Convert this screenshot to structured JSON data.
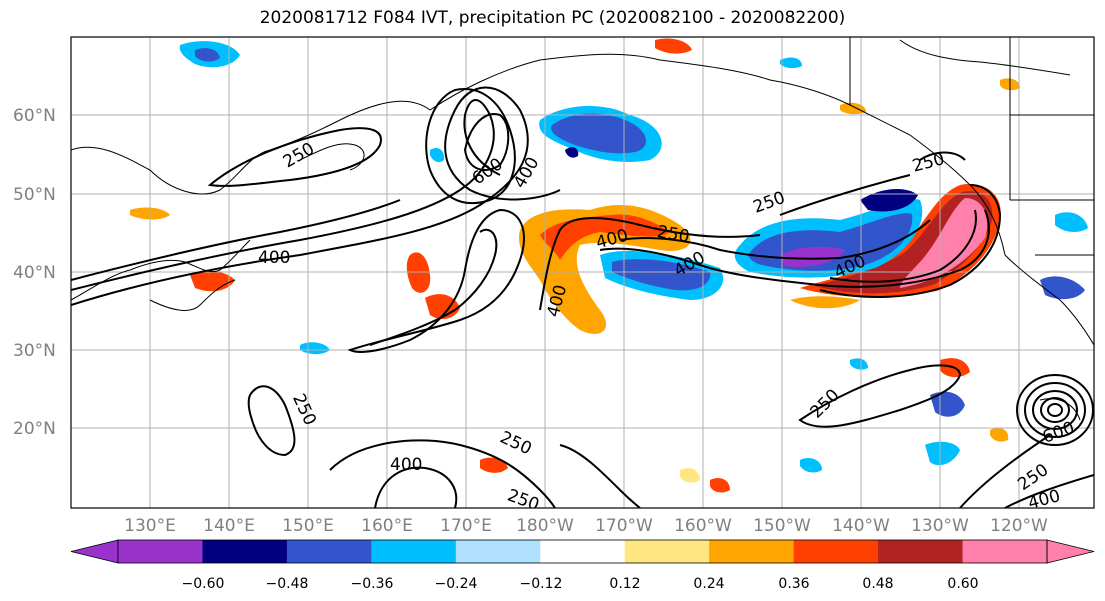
{
  "title": "2020081712 F084 IVT, precipitation PC (2020082100 - 2020082200)",
  "axes": {
    "lat_labels": [
      "60°N",
      "50°N",
      "40°N",
      "30°N",
      "20°N"
    ],
    "lon_labels": [
      "130°E",
      "140°E",
      "150°E",
      "160°E",
      "170°E",
      "180°W",
      "170°W",
      "160°W",
      "150°W",
      "140°W",
      "130°W",
      "120°W"
    ]
  },
  "contour_labels": [
    "250",
    "600",
    "400",
    "400",
    "400",
    "250",
    "400",
    "250",
    "400",
    "250",
    "400",
    "250",
    "250",
    "250",
    "400",
    "250",
    "600",
    "250",
    "400"
  ],
  "colorbar": {
    "ticks": [
      "−0.60",
      "−0.48",
      "−0.36",
      "−0.24",
      "−0.12",
      "0.12",
      "0.24",
      "0.36",
      "0.48",
      "0.60"
    ],
    "colors": [
      "#9933cc",
      "#000080",
      "#3355cc",
      "#00bfff",
      "#b0e0ff",
      "#ffffff",
      "#ffe680",
      "#ffa500",
      "#ff4000",
      "#b22222",
      "#ff80aa"
    ]
  }
}
